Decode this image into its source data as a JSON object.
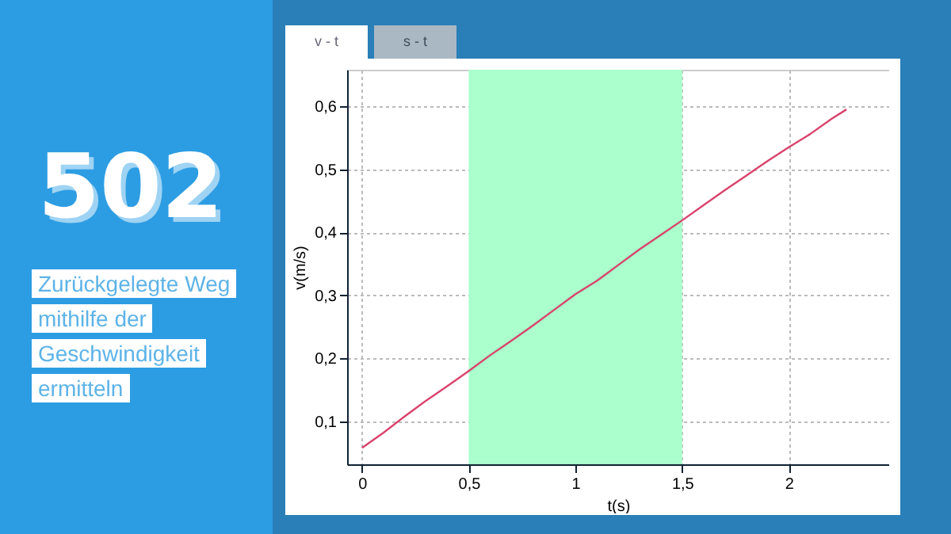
{
  "chart_data": {
    "type": "line",
    "title": "502",
    "subtitle": "Zurückgelegte Weg mithilfe der Geschwindigkeit ermitteln",
    "xlabel": "t(s)",
    "ylabel": "v(m/s)",
    "annotations": [
      "v - t",
      "s - t"
    ],
    "x": [
      0,
      0.1,
      0.2,
      0.3,
      0.4,
      0.5,
      0.6,
      0.7,
      0.8,
      0.9,
      1.0,
      1.1,
      1.2,
      1.3,
      1.4,
      1.5,
      1.6,
      1.7,
      1.8,
      1.9,
      2.0,
      2.1,
      2.2,
      2.27
    ],
    "series": [
      {
        "color": "#d9436b",
        "values": [
          0.058,
          0.082,
          0.108,
          0.133,
          0.156,
          0.18,
          0.205,
          0.228,
          0.252,
          0.277,
          0.302,
          0.323,
          0.348,
          0.373,
          0.396,
          0.419,
          0.443,
          0.467,
          0.49,
          0.513,
          0.535,
          0.556,
          0.58,
          0.595
        ]
      }
    ],
    "xlim": [
      -0.07,
      2.47
    ],
    "ylim": [
      0.032,
      0.658
    ],
    "xticks": [
      0,
      {
        "value": 0.5,
        "label": "0,5"
      },
      1,
      {
        "value": 1.5,
        "label": "1,5"
      },
      2
    ],
    "yticks": [
      {
        "value": 0.1,
        "label": "0,1"
      },
      {
        "value": 0.2,
        "label": "0,2"
      },
      {
        "value": 0.3,
        "label": "0,3"
      },
      {
        "value": 0.4,
        "label": "0,4"
      },
      {
        "value": 0.5,
        "label": "0,5"
      },
      {
        "value": 0.6,
        "label": "0,6"
      }
    ],
    "bands": [
      {
        "axis": "x",
        "from": 0.5,
        "to": 1.5,
        "color": "#aaffcc"
      }
    ],
    "grid": true,
    "marker": "none",
    "line_style": "solid"
  }
}
